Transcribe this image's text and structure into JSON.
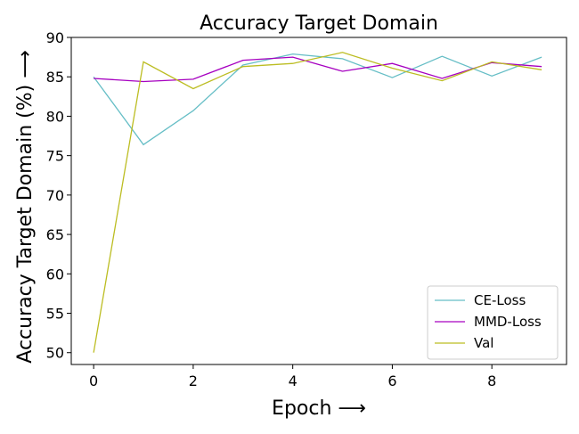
{
  "chart_data": {
    "type": "line",
    "title": "Accuracy Target Domain",
    "xlabel": "Epoch ⟶",
    "ylabel": "Accuracy Target Domain (%) ⟶",
    "x": [
      0,
      1,
      2,
      3,
      4,
      5,
      6,
      7,
      8,
      9
    ],
    "xlim": [
      -0.45,
      9.5
    ],
    "ylim": [
      48.5,
      90
    ],
    "xticks": [
      0,
      2,
      4,
      6,
      8
    ],
    "yticks": [
      50,
      55,
      60,
      65,
      70,
      75,
      80,
      85,
      90
    ],
    "grid": false,
    "legend_position": "lower-right",
    "series": [
      {
        "name": "CE-Loss",
        "color": "#66bec6",
        "values": [
          85.0,
          76.4,
          80.7,
          86.5,
          87.9,
          87.3,
          84.9,
          87.6,
          85.1,
          87.5
        ]
      },
      {
        "name": "MMD-Loss",
        "color": "#a600c0",
        "values": [
          84.8,
          84.4,
          84.7,
          87.1,
          87.5,
          85.7,
          86.7,
          84.8,
          86.8,
          86.3
        ]
      },
      {
        "name": "Val",
        "color": "#bcbd22",
        "values": [
          50.0,
          86.9,
          83.5,
          86.3,
          86.7,
          88.1,
          86.1,
          84.5,
          86.9,
          85.9
        ]
      }
    ]
  }
}
